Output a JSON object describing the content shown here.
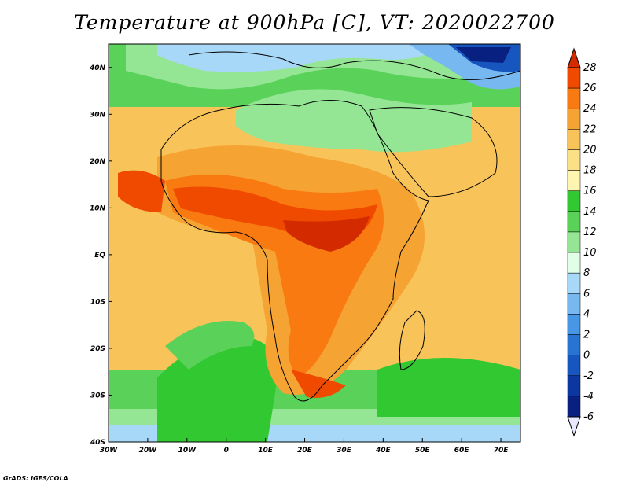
{
  "title": "Temperature at 900hPa [C], VT: 2020022700",
  "footer": "GrADS: IGES/COLA",
  "map": {
    "lon_range": [
      -30,
      75
    ],
    "lat_range": [
      -40,
      45
    ],
    "x_ticks": [
      {
        "value": -30,
        "label": "30W"
      },
      {
        "value": -20,
        "label": "20W"
      },
      {
        "value": -10,
        "label": "10W"
      },
      {
        "value": 0,
        "label": "0"
      },
      {
        "value": 10,
        "label": "10E"
      },
      {
        "value": 20,
        "label": "20E"
      },
      {
        "value": 30,
        "label": "30E"
      },
      {
        "value": 40,
        "label": "40E"
      },
      {
        "value": 50,
        "label": "50E"
      },
      {
        "value": 60,
        "label": "60E"
      },
      {
        "value": 70,
        "label": "70E"
      }
    ],
    "y_ticks": [
      {
        "value": 40,
        "label": "40N"
      },
      {
        "value": 30,
        "label": "30N"
      },
      {
        "value": 20,
        "label": "20N"
      },
      {
        "value": 10,
        "label": "10N"
      },
      {
        "value": 0,
        "label": "EQ"
      },
      {
        "value": -10,
        "label": "10S"
      },
      {
        "value": -20,
        "label": "20S"
      },
      {
        "value": -30,
        "label": "30S"
      },
      {
        "value": -40,
        "label": "40S"
      }
    ]
  },
  "colorbar": {
    "levels": [
      "28",
      "26",
      "24",
      "22",
      "20",
      "18",
      "16",
      "14",
      "12",
      "10",
      "8",
      "6",
      "4",
      "2",
      "0",
      "-2",
      "-4",
      "-6"
    ],
    "colors": [
      "#d42a00",
      "#f04a00",
      "#f87a10",
      "#f5a333",
      "#f8c45a",
      "#fbe085",
      "#fdf5b0",
      "#32c832",
      "#5ad25a",
      "#94e694",
      "#e0ffe6",
      "#a8d8f8",
      "#78b8f0",
      "#4896e6",
      "#2874d2",
      "#1656be",
      "#0c36a0",
      "#082080",
      "#e8e8ff"
    ]
  }
}
